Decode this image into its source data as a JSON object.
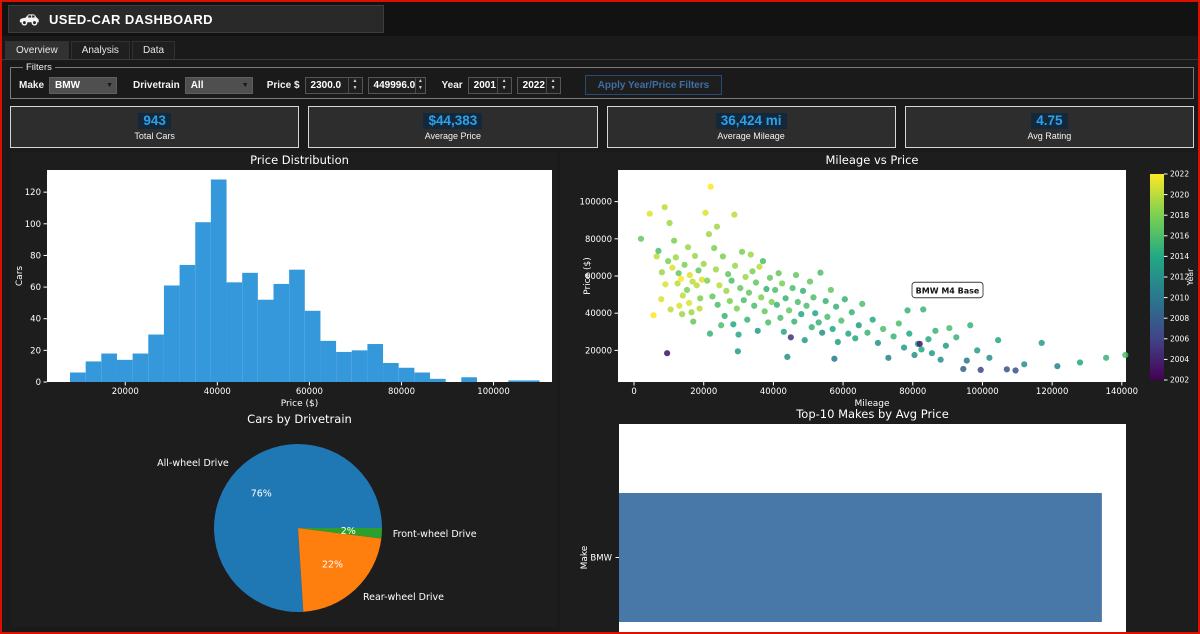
{
  "window": {
    "title": "USED-CAR DASHBOARD"
  },
  "tabs": [
    {
      "label": "Overview",
      "active": true
    },
    {
      "label": "Analysis",
      "active": false
    },
    {
      "label": "Data",
      "active": false
    }
  ],
  "filters": {
    "legend": "Filters",
    "make_label": "Make",
    "make_value": "BMW",
    "drivetrain_label": "Drivetrain",
    "drivetrain_value": "All",
    "price_label": "Price $",
    "price_min": "2300.0",
    "price_max": "449996.0",
    "year_label": "Year",
    "year_min": "2001",
    "year_max": "2022",
    "apply_button": "Apply Year/Price Filters"
  },
  "kpis": [
    {
      "value": "943",
      "label": "Total Cars"
    },
    {
      "value": "$44,383",
      "label": "Average Price"
    },
    {
      "value": "36,424 mi",
      "label": "Average Mileage"
    },
    {
      "value": "4.75",
      "label": "Avg Rating"
    }
  ],
  "colors": {
    "accent_blue": "#2da0e8",
    "hist_bar": "#3498db",
    "barh_bar": "#4878a8",
    "pie_awd": "#1f77b4",
    "pie_rwd": "#ff7f0e",
    "pie_fwd": "#2ca02c",
    "frame_red": "#dd0f00"
  },
  "chart_data": [
    {
      "type": "bar",
      "subtype": "histogram",
      "title": "Price Distribution",
      "xlabel": "Price ($)",
      "ylabel": "Cars",
      "bin_start": 8000,
      "bin_width": 3400,
      "counts": [
        6,
        13,
        18,
        14,
        18,
        30,
        61,
        74,
        101,
        128,
        63,
        69,
        52,
        62,
        71,
        45,
        26,
        19,
        20,
        24,
        12,
        9,
        6,
        2,
        0,
        3,
        0,
        0,
        1,
        1
      ],
      "xlim": [
        3000,
        112700
      ],
      "ylim": [
        0,
        134
      ],
      "xticks": [
        20000,
        40000,
        60000,
        80000,
        100000
      ],
      "yticks": [
        0,
        20,
        40,
        60,
        80,
        100,
        120
      ],
      "bar_color": "#3498db",
      "grid": false
    },
    {
      "type": "scatter",
      "title": "Mileage vs Price",
      "xlabel": "Mileage",
      "ylabel": "Price ($)",
      "color_label": "Year",
      "color_range": [
        2002,
        2022
      ],
      "colorbar_ticks": [
        2002,
        2004,
        2006,
        2008,
        2010,
        2012,
        2014,
        2016,
        2018,
        2020,
        2022
      ],
      "xlim": [
        -4600,
        141200
      ],
      "ylim": [
        3000,
        117000
      ],
      "xticks": [
        0,
        20000,
        40000,
        60000,
        80000,
        100000,
        120000,
        140000
      ],
      "yticks": [
        20000,
        40000,
        60000,
        80000,
        100000
      ],
      "tooltip": {
        "label": "BMW M4 Base",
        "mileage": 79500,
        "price": 47500
      },
      "points": [
        [
          2000,
          80000,
          2017
        ],
        [
          4500,
          93500,
          2021
        ],
        [
          5600,
          38900,
          2022
        ],
        [
          6500,
          70500,
          2020
        ],
        [
          7000,
          73500,
          2016
        ],
        [
          7800,
          47500,
          2021
        ],
        [
          8000,
          62000,
          2019
        ],
        [
          8800,
          97000,
          2020
        ],
        [
          9000,
          55500,
          2021
        ],
        [
          9500,
          18500,
          2003
        ],
        [
          9800,
          68000,
          2018
        ],
        [
          10200,
          88500,
          2019
        ],
        [
          10500,
          42000,
          2020
        ],
        [
          11000,
          64500,
          2021
        ],
        [
          11500,
          79000,
          2018
        ],
        [
          12000,
          70000,
          2019
        ],
        [
          12500,
          56000,
          2020
        ],
        [
          12800,
          61500,
          2017
        ],
        [
          13000,
          44000,
          2021
        ],
        [
          13500,
          58500,
          2022
        ],
        [
          13800,
          39500,
          2019
        ],
        [
          14000,
          49500,
          2020
        ],
        [
          14500,
          66000,
          2018
        ],
        [
          15200,
          52500,
          2018
        ],
        [
          15500,
          75500,
          2019
        ],
        [
          15800,
          45500,
          2021
        ],
        [
          16000,
          60500,
          2021
        ],
        [
          16500,
          40500,
          2019
        ],
        [
          16800,
          57000,
          2020
        ],
        [
          17000,
          35500,
          2017
        ],
        [
          17500,
          70800,
          2019
        ],
        [
          18000,
          55000,
          2020
        ],
        [
          18500,
          63000,
          2017
        ],
        [
          18800,
          42500,
          2020
        ],
        [
          19000,
          48000,
          2018
        ],
        [
          19500,
          58000,
          2021
        ],
        [
          20000,
          66500,
          2019
        ],
        [
          20500,
          94000,
          2021
        ],
        [
          21000,
          57500,
          2018
        ],
        [
          21500,
          82500,
          2019
        ],
        [
          21800,
          29000,
          2015
        ],
        [
          22000,
          108000,
          2022
        ],
        [
          22500,
          49000,
          2017
        ],
        [
          23000,
          75000,
          2018
        ],
        [
          23500,
          63500,
          2019
        ],
        [
          23800,
          86500,
          2019
        ],
        [
          24000,
          44500,
          2016
        ],
        [
          24500,
          55000,
          2020
        ],
        [
          25000,
          33500,
          2016
        ],
        [
          25500,
          70500,
          2018
        ],
        [
          26000,
          38500,
          2015
        ],
        [
          26500,
          52000,
          2019
        ],
        [
          27000,
          61000,
          2017
        ],
        [
          27500,
          46500,
          2018
        ],
        [
          28000,
          57500,
          2016
        ],
        [
          28500,
          34000,
          2014
        ],
        [
          28800,
          93000,
          2020
        ],
        [
          29000,
          65500,
          2019
        ],
        [
          29500,
          42500,
          2018
        ],
        [
          29800,
          19500,
          2013
        ],
        [
          30000,
          28500,
          2014
        ],
        [
          30500,
          53500,
          2017
        ],
        [
          31000,
          73000,
          2018
        ],
        [
          31500,
          47000,
          2016
        ],
        [
          32000,
          59500,
          2019
        ],
        [
          32500,
          36500,
          2015
        ],
        [
          33000,
          51000,
          2017
        ],
        [
          33500,
          71500,
          2019
        ],
        [
          34000,
          62500,
          2018
        ],
        [
          34500,
          44000,
          2016
        ],
        [
          35000,
          56500,
          2017
        ],
        [
          35500,
          30500,
          2013
        ],
        [
          36000,
          65000,
          2020
        ],
        [
          36500,
          48500,
          2018
        ],
        [
          37000,
          68000,
          2016
        ],
        [
          37500,
          41000,
          2017
        ],
        [
          38000,
          53000,
          2015
        ],
        [
          38500,
          35000,
          2016
        ],
        [
          39000,
          59000,
          2017
        ],
        [
          39500,
          46000,
          2018
        ],
        [
          40500,
          52500,
          2016
        ],
        [
          41000,
          44500,
          2015
        ],
        [
          41500,
          61500,
          2017
        ],
        [
          42000,
          37500,
          2016
        ],
        [
          42500,
          56000,
          2018
        ],
        [
          43000,
          30000,
          2014
        ],
        [
          43500,
          48000,
          2015
        ],
        [
          44000,
          16500,
          2012
        ],
        [
          44500,
          41500,
          2017
        ],
        [
          45000,
          27000,
          2005
        ],
        [
          45500,
          53500,
          2016
        ],
        [
          46000,
          35500,
          2015
        ],
        [
          46500,
          60500,
          2017
        ],
        [
          47000,
          46000,
          2016
        ],
        [
          48000,
          39500,
          2014
        ],
        [
          48500,
          52000,
          2015
        ],
        [
          49000,
          25500,
          2013
        ],
        [
          49500,
          44000,
          2016
        ],
        [
          50500,
          57000,
          2017
        ],
        [
          51000,
          32500,
          2015
        ],
        [
          51500,
          48500,
          2016
        ],
        [
          52000,
          40000,
          2014
        ],
        [
          53000,
          35000,
          2015
        ],
        [
          53500,
          61800,
          2016
        ],
        [
          54000,
          29500,
          2012
        ],
        [
          55000,
          46500,
          2015
        ],
        [
          55500,
          38000,
          2016
        ],
        [
          56500,
          52500,
          2017
        ],
        [
          57000,
          31500,
          2014
        ],
        [
          57500,
          15500,
          2010
        ],
        [
          58000,
          43500,
          2015
        ],
        [
          58500,
          24500,
          2013
        ],
        [
          59500,
          36000,
          2016
        ],
        [
          60500,
          47500,
          2015
        ],
        [
          61500,
          29000,
          2014
        ],
        [
          62500,
          40500,
          2015
        ],
        [
          63500,
          26500,
          2014
        ],
        [
          64500,
          33500,
          2013
        ],
        [
          65500,
          45000,
          2016
        ],
        [
          67000,
          29500,
          2015
        ],
        [
          68500,
          36500,
          2014
        ],
        [
          70000,
          24000,
          2012
        ],
        [
          71500,
          31500,
          2016
        ],
        [
          73000,
          16000,
          2011
        ],
        [
          74500,
          27500,
          2015
        ],
        [
          76000,
          34500,
          2016
        ],
        [
          77500,
          21500,
          2013
        ],
        [
          78500,
          41500,
          2015
        ],
        [
          79000,
          29000,
          2014
        ],
        [
          80500,
          17500,
          2012
        ],
        [
          81500,
          23500,
          2013
        ],
        [
          82000,
          23500,
          2004
        ],
        [
          82500,
          20500,
          2014
        ],
        [
          83000,
          42000,
          2015
        ],
        [
          84500,
          26000,
          2014
        ],
        [
          85500,
          18500,
          2013
        ],
        [
          86500,
          30500,
          2015
        ],
        [
          88000,
          15000,
          2012
        ],
        [
          89500,
          22500,
          2013
        ],
        [
          90500,
          32000,
          2016
        ],
        [
          92500,
          27000,
          2015
        ],
        [
          94500,
          10000,
          2008
        ],
        [
          95500,
          14500,
          2010
        ],
        [
          96500,
          33500,
          2015
        ],
        [
          98500,
          20000,
          2013
        ],
        [
          99500,
          9500,
          2006
        ],
        [
          102000,
          16000,
          2012
        ],
        [
          104500,
          25500,
          2014
        ],
        [
          107000,
          9800,
          2007
        ],
        [
          109500,
          9200,
          2007
        ],
        [
          112000,
          12500,
          2012
        ],
        [
          117000,
          24000,
          2013
        ],
        [
          121500,
          11500,
          2011
        ],
        [
          128000,
          13500,
          2014
        ],
        [
          135500,
          16000,
          2015
        ],
        [
          141000,
          17500,
          2016
        ]
      ]
    },
    {
      "type": "pie",
      "title": "Cars by Drivetrain",
      "slices": [
        {
          "label": "All-wheel Drive",
          "pct": 76,
          "color": "#1f77b4"
        },
        {
          "label": "Rear-wheel Drive",
          "pct": 22,
          "color": "#ff7f0e"
        },
        {
          "label": "Front-wheel Drive",
          "pct": 2,
          "color": "#2ca02c"
        }
      ]
    },
    {
      "type": "bar",
      "orientation": "horizontal",
      "title": "Top-10 Makes by Avg Price",
      "ylabel": "Make",
      "categories": [
        "BMW"
      ],
      "values": [
        44383
      ],
      "xlim": [
        0,
        46600
      ],
      "bar_color": "#4878a8"
    }
  ]
}
